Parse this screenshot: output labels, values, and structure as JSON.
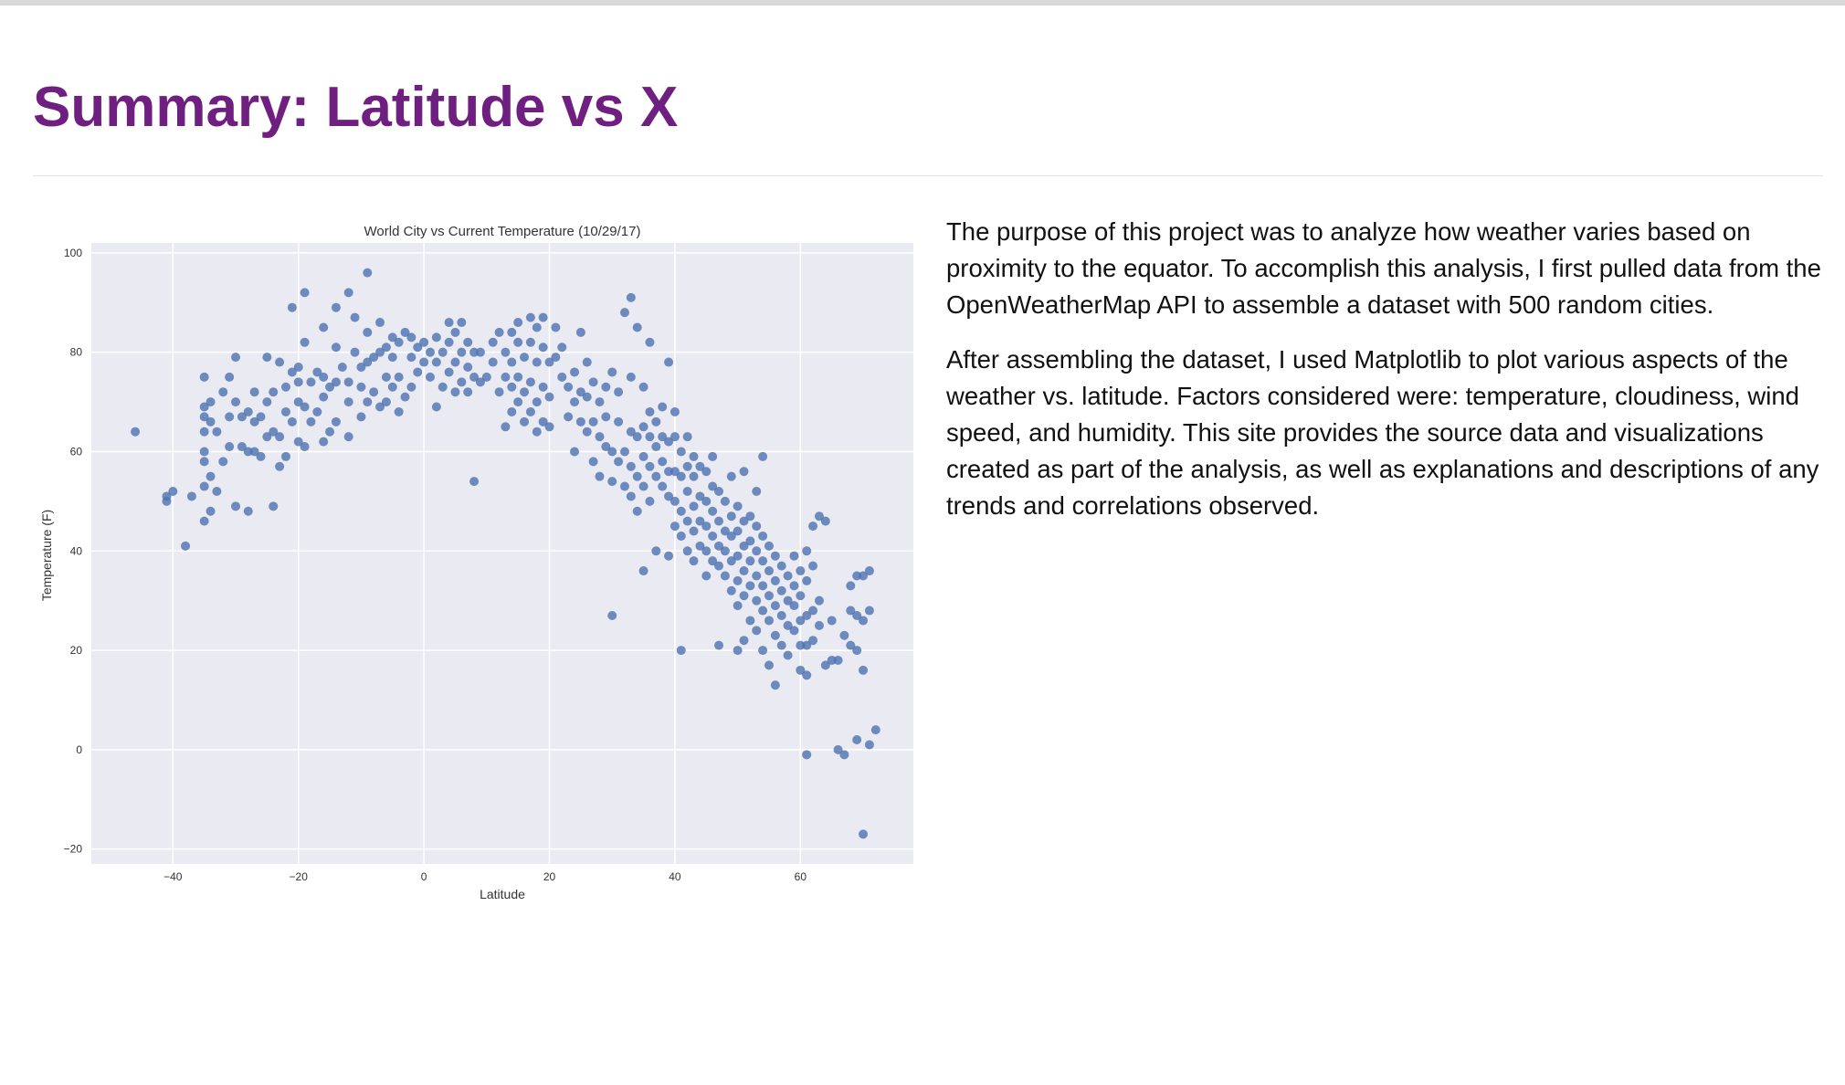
{
  "page": {
    "title": "Summary: Latitude vs X"
  },
  "summary": {
    "paragraph_1": "The purpose of this project was to analyze how weather varies based on proximity to the equator. To accomplish this analysis, I first pulled data from the OpenWeatherMap API to assemble a dataset with 500 random cities.",
    "paragraph_2": "After assembling the dataset, I used Matplotlib to plot various aspects of the weather vs. latitude. Factors considered were: temperature, cloudiness, wind speed, and humidity. This site provides the source data and visualizations created as part of the analysis, as well as explanations and descriptions of any trends and correlations observed."
  },
  "chart_data": {
    "type": "scatter",
    "title": "World City vs Current Temperature (10/29/17)",
    "xlabel": "Latitude",
    "ylabel": "Temperature (F)",
    "xlim": [
      -53,
      78
    ],
    "ylim": [
      -23,
      102
    ],
    "xticks": [
      -40,
      -20,
      0,
      20,
      40,
      60
    ],
    "yticks": [
      -20,
      0,
      20,
      40,
      60,
      80,
      100
    ],
    "grid": true,
    "legend": "none",
    "colors": {
      "point": "#4c72b0",
      "plot_bg": "#eaeaf2",
      "grid": "#ffffff",
      "text": "#333333"
    },
    "points": [
      [
        -46,
        64
      ],
      [
        -41,
        51
      ],
      [
        -41,
        50
      ],
      [
        -40,
        52
      ],
      [
        -38,
        41
      ],
      [
        -37,
        51
      ],
      [
        -35,
        46
      ],
      [
        -35,
        53
      ],
      [
        -35,
        58
      ],
      [
        -35,
        60
      ],
      [
        -35,
        64
      ],
      [
        -35,
        67
      ],
      [
        -35,
        69
      ],
      [
        -35,
        75
      ],
      [
        -34,
        48
      ],
      [
        -34,
        55
      ],
      [
        -34,
        66
      ],
      [
        -34,
        70
      ],
      [
        -33,
        52
      ],
      [
        -33,
        64
      ],
      [
        -32,
        58
      ],
      [
        -32,
        72
      ],
      [
        -31,
        61
      ],
      [
        -31,
        67
      ],
      [
        -31,
        75
      ],
      [
        -30,
        49
      ],
      [
        -30,
        79
      ],
      [
        -30,
        70
      ],
      [
        -29,
        61
      ],
      [
        -29,
        67
      ],
      [
        -28,
        48
      ],
      [
        -28,
        60
      ],
      [
        -28,
        68
      ],
      [
        -27,
        60
      ],
      [
        -27,
        66
      ],
      [
        -27,
        72
      ],
      [
        -26,
        59
      ],
      [
        -26,
        67
      ],
      [
        -25,
        63
      ],
      [
        -25,
        70
      ],
      [
        -25,
        79
      ],
      [
        -24,
        49
      ],
      [
        -24,
        64
      ],
      [
        -24,
        72
      ],
      [
        -23,
        57
      ],
      [
        -23,
        63
      ],
      [
        -23,
        78
      ],
      [
        -22,
        59
      ],
      [
        -22,
        68
      ],
      [
        -22,
        73
      ],
      [
        -21,
        66
      ],
      [
        -21,
        76
      ],
      [
        -21,
        89
      ],
      [
        -20,
        62
      ],
      [
        -20,
        70
      ],
      [
        -20,
        74
      ],
      [
        -20,
        77
      ],
      [
        -19,
        61
      ],
      [
        -19,
        69
      ],
      [
        -19,
        82
      ],
      [
        -19,
        92
      ],
      [
        -18,
        66
      ],
      [
        -18,
        74
      ],
      [
        -17,
        68
      ],
      [
        -17,
        76
      ],
      [
        -16,
        62
      ],
      [
        -16,
        71
      ],
      [
        -16,
        75
      ],
      [
        -16,
        85
      ],
      [
        -15,
        64
      ],
      [
        -15,
        73
      ],
      [
        -14,
        66
      ],
      [
        -14,
        74
      ],
      [
        -14,
        81
      ],
      [
        -14,
        89
      ],
      [
        -13,
        77
      ],
      [
        -12,
        63
      ],
      [
        -12,
        70
      ],
      [
        -12,
        74
      ],
      [
        -12,
        92
      ],
      [
        -11,
        80
      ],
      [
        -11,
        87
      ],
      [
        -10,
        67
      ],
      [
        -10,
        73
      ],
      [
        -10,
        77
      ],
      [
        -9,
        70
      ],
      [
        -9,
        78
      ],
      [
        -9,
        84
      ],
      [
        -9,
        96
      ],
      [
        -8,
        72
      ],
      [
        -8,
        79
      ],
      [
        -7,
        69
      ],
      [
        -7,
        80
      ],
      [
        -7,
        86
      ],
      [
        -6,
        70
      ],
      [
        -6,
        75
      ],
      [
        -6,
        81
      ],
      [
        -5,
        73
      ],
      [
        -5,
        79
      ],
      [
        -5,
        83
      ],
      [
        -4,
        68
      ],
      [
        -4,
        75
      ],
      [
        -4,
        82
      ],
      [
        -3,
        71
      ],
      [
        -3,
        84
      ],
      [
        -2,
        73
      ],
      [
        -2,
        79
      ],
      [
        -2,
        83
      ],
      [
        -1,
        76
      ],
      [
        -1,
        81
      ],
      [
        0,
        78
      ],
      [
        0,
        82
      ],
      [
        1,
        80
      ],
      [
        1,
        75
      ],
      [
        2,
        69
      ],
      [
        2,
        78
      ],
      [
        2,
        83
      ],
      [
        3,
        73
      ],
      [
        3,
        80
      ],
      [
        4,
        76
      ],
      [
        4,
        82
      ],
      [
        4,
        86
      ],
      [
        5,
        72
      ],
      [
        5,
        78
      ],
      [
        5,
        84
      ],
      [
        6,
        74
      ],
      [
        6,
        80
      ],
      [
        6,
        86
      ],
      [
        7,
        72
      ],
      [
        7,
        77
      ],
      [
        7,
        82
      ],
      [
        8,
        54
      ],
      [
        8,
        75
      ],
      [
        8,
        80
      ],
      [
        9,
        74
      ],
      [
        9,
        80
      ],
      [
        10,
        75
      ],
      [
        11,
        78
      ],
      [
        11,
        82
      ],
      [
        12,
        72
      ],
      [
        12,
        84
      ],
      [
        13,
        65
      ],
      [
        13,
        75
      ],
      [
        13,
        80
      ],
      [
        14,
        68
      ],
      [
        14,
        73
      ],
      [
        14,
        78
      ],
      [
        14,
        84
      ],
      [
        15,
        70
      ],
      [
        15,
        75
      ],
      [
        15,
        82
      ],
      [
        15,
        86
      ],
      [
        16,
        66
      ],
      [
        16,
        72
      ],
      [
        16,
        79
      ],
      [
        17,
        68
      ],
      [
        17,
        74
      ],
      [
        17,
        82
      ],
      [
        17,
        87
      ],
      [
        18,
        64
      ],
      [
        18,
        70
      ],
      [
        18,
        78
      ],
      [
        18,
        85
      ],
      [
        19,
        66
      ],
      [
        19,
        73
      ],
      [
        19,
        81
      ],
      [
        19,
        87
      ],
      [
        20,
        65
      ],
      [
        20,
        71
      ],
      [
        20,
        78
      ],
      [
        21,
        79
      ],
      [
        21,
        85
      ],
      [
        22,
        75
      ],
      [
        22,
        81
      ],
      [
        23,
        67
      ],
      [
        23,
        73
      ],
      [
        24,
        60
      ],
      [
        24,
        70
      ],
      [
        24,
        76
      ],
      [
        25,
        66
      ],
      [
        25,
        72
      ],
      [
        25,
        84
      ],
      [
        26,
        64
      ],
      [
        26,
        71
      ],
      [
        26,
        78
      ],
      [
        27,
        58
      ],
      [
        27,
        66
      ],
      [
        27,
        74
      ],
      [
        28,
        55
      ],
      [
        28,
        63
      ],
      [
        28,
        70
      ],
      [
        29,
        61
      ],
      [
        29,
        67
      ],
      [
        29,
        73
      ],
      [
        30,
        27
      ],
      [
        30,
        54
      ],
      [
        30,
        60
      ],
      [
        30,
        76
      ],
      [
        31,
        58
      ],
      [
        31,
        66
      ],
      [
        31,
        72
      ],
      [
        32,
        53
      ],
      [
        32,
        60
      ],
      [
        32,
        88
      ],
      [
        33,
        51
      ],
      [
        33,
        57
      ],
      [
        33,
        64
      ],
      [
        33,
        75
      ],
      [
        33,
        91
      ],
      [
        34,
        48
      ],
      [
        34,
        55
      ],
      [
        34,
        63
      ],
      [
        34,
        85
      ],
      [
        35,
        36
      ],
      [
        35,
        53
      ],
      [
        35,
        59
      ],
      [
        35,
        65
      ],
      [
        35,
        73
      ],
      [
        36,
        50
      ],
      [
        36,
        57
      ],
      [
        36,
        63
      ],
      [
        36,
        68
      ],
      [
        36,
        82
      ],
      [
        37,
        40
      ],
      [
        37,
        55
      ],
      [
        37,
        61
      ],
      [
        37,
        66
      ],
      [
        38,
        53
      ],
      [
        38,
        58
      ],
      [
        38,
        63
      ],
      [
        38,
        69
      ],
      [
        39,
        39
      ],
      [
        39,
        51
      ],
      [
        39,
        56
      ],
      [
        39,
        62
      ],
      [
        39,
        78
      ],
      [
        40,
        45
      ],
      [
        40,
        50
      ],
      [
        40,
        56
      ],
      [
        40,
        63
      ],
      [
        40,
        68
      ],
      [
        41,
        20
      ],
      [
        41,
        43
      ],
      [
        41,
        48
      ],
      [
        41,
        55
      ],
      [
        41,
        60
      ],
      [
        42,
        40
      ],
      [
        42,
        46
      ],
      [
        42,
        52
      ],
      [
        42,
        57
      ],
      [
        42,
        63
      ],
      [
        43,
        38
      ],
      [
        43,
        44
      ],
      [
        43,
        49
      ],
      [
        43,
        55
      ],
      [
        43,
        59
      ],
      [
        44,
        41
      ],
      [
        44,
        46
      ],
      [
        44,
        51
      ],
      [
        44,
        57
      ],
      [
        45,
        35
      ],
      [
        45,
        40
      ],
      [
        45,
        45
      ],
      [
        45,
        50
      ],
      [
        45,
        56
      ],
      [
        46,
        38
      ],
      [
        46,
        43
      ],
      [
        46,
        48
      ],
      [
        46,
        53
      ],
      [
        46,
        59
      ],
      [
        47,
        21
      ],
      [
        47,
        37
      ],
      [
        47,
        41
      ],
      [
        47,
        46
      ],
      [
        47,
        52
      ],
      [
        48,
        35
      ],
      [
        48,
        40
      ],
      [
        48,
        44
      ],
      [
        48,
        50
      ],
      [
        49,
        32
      ],
      [
        49,
        38
      ],
      [
        49,
        43
      ],
      [
        49,
        47
      ],
      [
        49,
        55
      ],
      [
        50,
        20
      ],
      [
        50,
        29
      ],
      [
        50,
        34
      ],
      [
        50,
        39
      ],
      [
        50,
        44
      ],
      [
        50,
        49
      ],
      [
        51,
        22
      ],
      [
        51,
        31
      ],
      [
        51,
        36
      ],
      [
        51,
        41
      ],
      [
        51,
        46
      ],
      [
        51,
        56
      ],
      [
        52,
        26
      ],
      [
        52,
        33
      ],
      [
        52,
        38
      ],
      [
        52,
        42
      ],
      [
        52,
        47
      ],
      [
        53,
        24
      ],
      [
        53,
        30
      ],
      [
        53,
        35
      ],
      [
        53,
        40
      ],
      [
        53,
        45
      ],
      [
        53,
        52
      ],
      [
        54,
        20
      ],
      [
        54,
        28
      ],
      [
        54,
        33
      ],
      [
        54,
        38
      ],
      [
        54,
        43
      ],
      [
        54,
        59
      ],
      [
        55,
        17
      ],
      [
        55,
        26
      ],
      [
        55,
        31
      ],
      [
        55,
        36
      ],
      [
        55,
        41
      ],
      [
        56,
        13
      ],
      [
        56,
        23
      ],
      [
        56,
        29
      ],
      [
        56,
        34
      ],
      [
        56,
        39
      ],
      [
        57,
        21
      ],
      [
        57,
        27
      ],
      [
        57,
        32
      ],
      [
        57,
        37
      ],
      [
        58,
        19
      ],
      [
        58,
        25
      ],
      [
        58,
        30
      ],
      [
        58,
        35
      ],
      [
        59,
        24
      ],
      [
        59,
        29
      ],
      [
        59,
        33
      ],
      [
        59,
        39
      ],
      [
        60,
        16
      ],
      [
        60,
        21
      ],
      [
        60,
        26
      ],
      [
        60,
        31
      ],
      [
        60,
        36
      ],
      [
        61,
        -1
      ],
      [
        61,
        15
      ],
      [
        61,
        21
      ],
      [
        61,
        27
      ],
      [
        61,
        34
      ],
      [
        61,
        40
      ],
      [
        62,
        22
      ],
      [
        62,
        28
      ],
      [
        62,
        37
      ],
      [
        62,
        45
      ],
      [
        63,
        25
      ],
      [
        63,
        30
      ],
      [
        63,
        47
      ],
      [
        64,
        17
      ],
      [
        64,
        46
      ],
      [
        65,
        18
      ],
      [
        65,
        26
      ],
      [
        66,
        0
      ],
      [
        66,
        18
      ],
      [
        67,
        -1
      ],
      [
        67,
        23
      ],
      [
        68,
        21
      ],
      [
        68,
        28
      ],
      [
        68,
        33
      ],
      [
        69,
        2
      ],
      [
        69,
        20
      ],
      [
        69,
        27
      ],
      [
        69,
        35
      ],
      [
        70,
        -17
      ],
      [
        70,
        16
      ],
      [
        70,
        26
      ],
      [
        70,
        35
      ],
      [
        71,
        1
      ],
      [
        71,
        28
      ],
      [
        71,
        36
      ],
      [
        72,
        4
      ]
    ]
  }
}
